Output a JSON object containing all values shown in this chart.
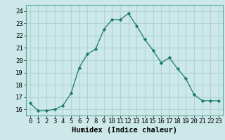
{
  "x": [
    0,
    1,
    2,
    3,
    4,
    5,
    6,
    7,
    8,
    9,
    10,
    11,
    12,
    13,
    14,
    15,
    16,
    17,
    18,
    19,
    20,
    21,
    22,
    23
  ],
  "y": [
    16.5,
    15.9,
    15.9,
    16.0,
    16.3,
    17.3,
    19.4,
    20.5,
    20.9,
    22.5,
    23.3,
    23.3,
    23.8,
    22.8,
    21.7,
    20.8,
    19.8,
    20.2,
    19.3,
    18.5,
    17.2,
    16.7,
    16.7,
    16.7
  ],
  "xlabel": "Humidex (Indice chaleur)",
  "ylim": [
    15.5,
    24.5
  ],
  "xlim": [
    -0.5,
    23.5
  ],
  "line_color": "#1a7a6e",
  "marker": "D",
  "marker_size": 2.2,
  "bg_color": "#cce8e8",
  "grid_color": "#b0d4d4",
  "label_fontsize": 7.5,
  "tick_fontsize": 6.5
}
